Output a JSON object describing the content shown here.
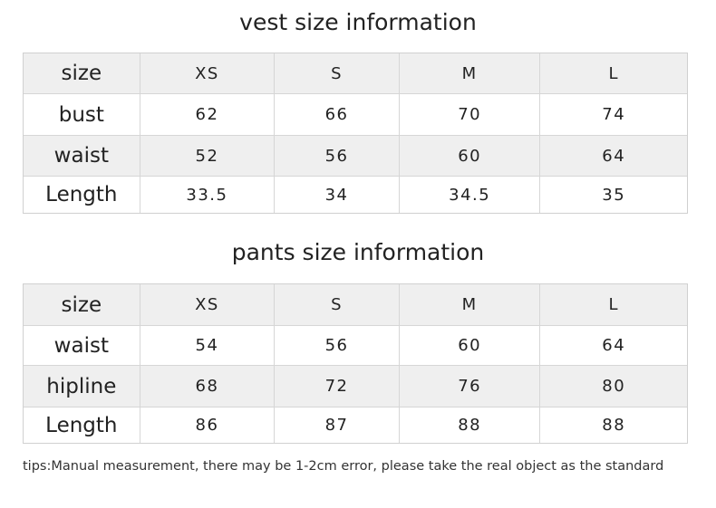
{
  "sections": [
    {
      "title": "vest size information",
      "table": {
        "header": [
          "size",
          "XS",
          "S",
          "M",
          "L"
        ],
        "rows": [
          [
            "bust",
            62,
            66,
            70,
            74
          ],
          [
            "waist",
            52,
            56,
            60,
            64
          ],
          [
            "Length",
            33.5,
            34,
            34.5,
            35
          ]
        ]
      }
    },
    {
      "title": "pants size information",
      "table": {
        "header": [
          "size",
          "XS",
          "S",
          "M",
          "L"
        ],
        "rows": [
          [
            "waist",
            54,
            56,
            60,
            64
          ],
          [
            "hipline",
            68,
            72,
            76,
            80
          ],
          [
            "Length",
            86,
            87,
            88,
            88
          ]
        ]
      }
    }
  ],
  "tips": "tips:Manual measurement, there may be 1-2cm error, please take the real object as the standard"
}
